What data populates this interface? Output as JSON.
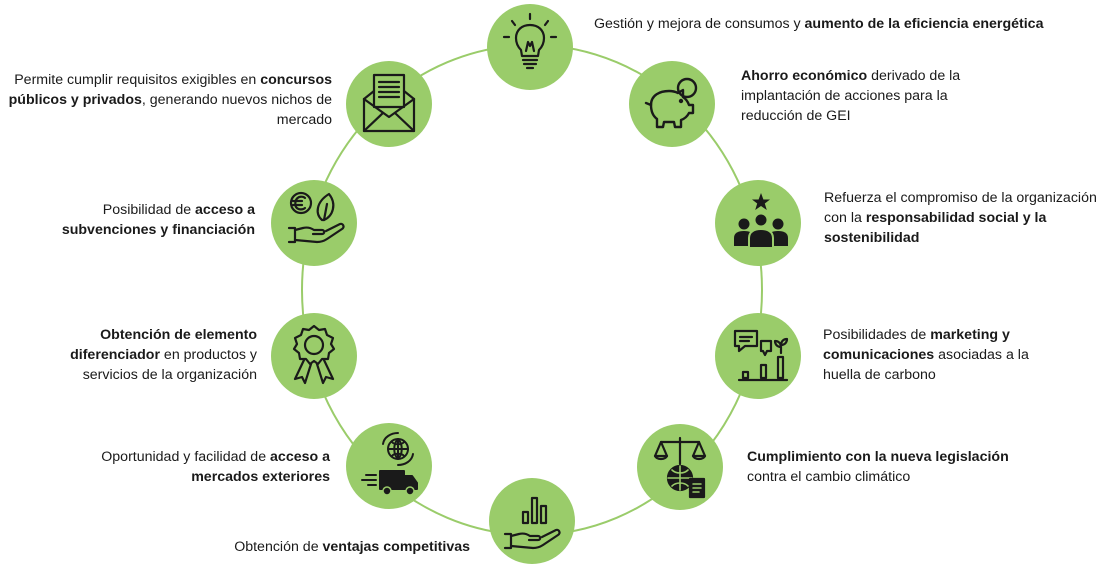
{
  "benefits": [
    {
      "icon": "lightbulb-icon",
      "pre": "Gestión y mejora de consumos y ",
      "bold": "aumento de la eficiencia energética",
      "post": ""
    },
    {
      "icon": "piggy-bank-icon",
      "pre": "",
      "bold": "Ahorro económico",
      "post": " derivado de la implantación de acciones para la reducción de GEI"
    },
    {
      "icon": "people-star-icon",
      "pre": "Refuerza el compromiso de la organización con la ",
      "bold": "responsabilidad social y la sostenibilidad",
      "post": ""
    },
    {
      "icon": "marketing-chat-chart-icon",
      "pre": "Posibilidades de ",
      "bold": "marketing y comunicaciones",
      "post": " asociadas a la huella de carbono"
    },
    {
      "icon": "scales-globe-document-icon",
      "pre": "",
      "bold": "Cumplimiento con la nueva legislación",
      "post": " contra el cambio climático"
    },
    {
      "icon": "hand-bar-chart-icon",
      "pre": "Obtención de ",
      "bold": "ventajas competitivas",
      "post": ""
    },
    {
      "icon": "globe-truck-icon",
      "pre": "Oportunidad y facilidad de ",
      "bold": "acceso a mercados exteriores",
      "post": ""
    },
    {
      "icon": "award-rosette-icon",
      "pre": "",
      "bold": "Obtención de elemento diferenciador",
      "post": " en productos y servicios de la organización"
    },
    {
      "icon": "euro-leaf-hand-icon",
      "pre": "Posibilidad de ",
      "bold": "acceso a subvenciones y financiación",
      "post": ""
    },
    {
      "icon": "document-envelope-icon",
      "pre": "Permite cumplir requisitos exigibles en ",
      "bold": "concursos públicos y privados",
      "post": ", generando nuevos nichos de mercado"
    }
  ],
  "colors": {
    "circle": "#9acc6a",
    "ring": "#9acc6a",
    "icon": "#1a1a1a",
    "text": "#1a1a1a"
  }
}
